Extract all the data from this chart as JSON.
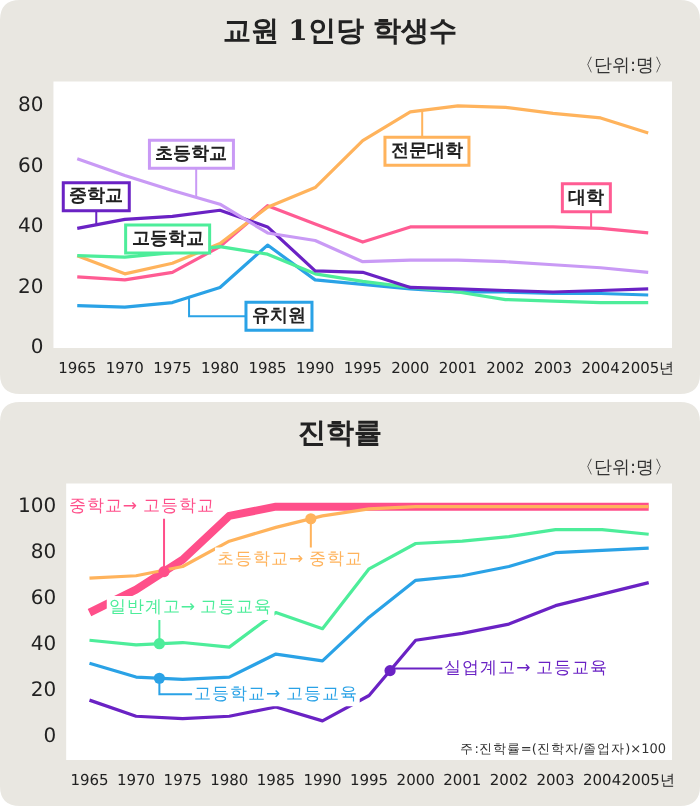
{
  "chart_data": [
    {
      "type": "line",
      "title": "교원 1인당 학생수",
      "annotations": [
        "〈단위:명〉"
      ],
      "categories": [
        "1965",
        "1970",
        "1975",
        "1980",
        "1985",
        "1990",
        "1995",
        "2000",
        "2001",
        "2002",
        "2003",
        "2004",
        "2005년"
      ],
      "ylim": [
        0,
        88
      ],
      "yticks": [
        0,
        20,
        40,
        60,
        80
      ],
      "grid": false,
      "legend": false,
      "marker": "none",
      "line_style": "solid",
      "series": [
        {
          "name": "초등학교",
          "color": "#c99af5",
          "values": [
            62.5,
            57,
            52,
            47.5,
            38,
            35.5,
            28.5,
            29,
            29,
            28.5,
            27.5,
            26.5,
            25
          ]
        },
        {
          "name": "중학교",
          "color": "#6a22c4",
          "values": [
            39.5,
            42.5,
            43.5,
            45.5,
            40,
            25.5,
            25,
            20,
            19.5,
            19,
            18.5,
            19,
            19.5
          ]
        },
        {
          "name": "고등학교",
          "color": "#4ded9a",
          "values": [
            30.5,
            30,
            31.5,
            33.5,
            31,
            24.5,
            22,
            20,
            18.5,
            16,
            15.5,
            15,
            15
          ]
        },
        {
          "name": "유치원",
          "color": "#2aa2e6",
          "values": [
            14,
            13.5,
            15,
            20,
            34,
            22.5,
            21,
            19.5,
            18.5,
            18.5,
            18,
            18,
            17.5
          ]
        },
        {
          "name": "전문대학",
          "color": "#ffb35c",
          "values": [
            30.5,
            24.5,
            28,
            34.5,
            46.5,
            53,
            68.5,
            78,
            80,
            79.5,
            77.5,
            76,
            71
          ]
        },
        {
          "name": "대학",
          "color": "#ff5c93",
          "values": [
            23.5,
            22.5,
            25,
            33.5,
            47,
            41,
            35,
            40,
            40,
            40,
            40,
            39.5,
            38
          ]
        }
      ]
    },
    {
      "type": "line",
      "title": "진학률",
      "annotations": [
        "〈단위:명〉",
        "주:진학률=(진학자/졸업자)×100"
      ],
      "categories": [
        "1965",
        "1970",
        "1975",
        "1980",
        "1985",
        "1990",
        "1995",
        "2000",
        "2001",
        "2002",
        "2003",
        "2004",
        "2005년"
      ],
      "ylim": [
        -10,
        110
      ],
      "yticks": [
        0,
        20,
        40,
        60,
        80,
        100
      ],
      "grid": false,
      "legend": false,
      "marker": "none",
      "line_style": "solid",
      "series": [
        {
          "name": "중학교→ 고등학교",
          "color": "#ff4f8a",
          "values": [
            54,
            64,
            77,
            96,
            100,
            100,
            100,
            100,
            100,
            100,
            100,
            100,
            100
          ]
        },
        {
          "name": "초등학교→ 중학교",
          "color": "#ffb35c",
          "values": [
            69,
            70,
            74,
            85,
            91,
            96,
            99,
            100,
            100,
            100,
            100,
            100,
            100
          ]
        },
        {
          "name": "일반계고→ 고등교육",
          "color": "#4ded9a",
          "values": [
            42,
            40,
            41,
            39,
            54,
            47,
            73,
            84,
            85,
            87,
            90,
            90,
            88
          ]
        },
        {
          "name": "고등학교→ 고등교육",
          "color": "#2aa2e6",
          "values": [
            32,
            26,
            25,
            26,
            36,
            33,
            52,
            68,
            70,
            74,
            80,
            81,
            82
          ]
        },
        {
          "name": "실업계고→ 고등교육",
          "color": "#6a22c4",
          "values": [
            16,
            9,
            8,
            9,
            13,
            7,
            18,
            42,
            45,
            49,
            57,
            62,
            67
          ]
        }
      ]
    }
  ]
}
